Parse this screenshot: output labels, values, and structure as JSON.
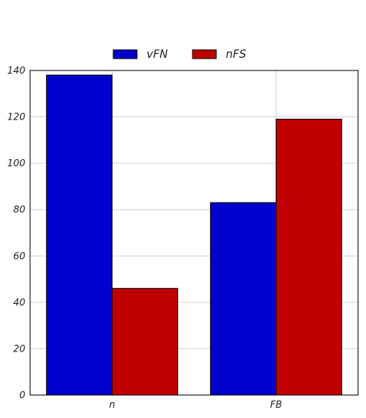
{
  "chart_data": {
    "type": "bar",
    "title": "",
    "xlabel": "",
    "ylabel": "",
    "categories": [
      "n",
      "FB"
    ],
    "series": [
      {
        "name": "vFN",
        "values": [
          138,
          83
        ],
        "color": "#0000cc"
      },
      {
        "name": "nFS",
        "values": [
          46,
          119
        ],
        "color": "#c00000"
      }
    ],
    "ylim": [
      0,
      140
    ],
    "yticks": [
      "0",
      "20",
      "40",
      "60",
      "80",
      "100",
      "120",
      "140"
    ],
    "grid": true,
    "legend_position": "top-center"
  }
}
